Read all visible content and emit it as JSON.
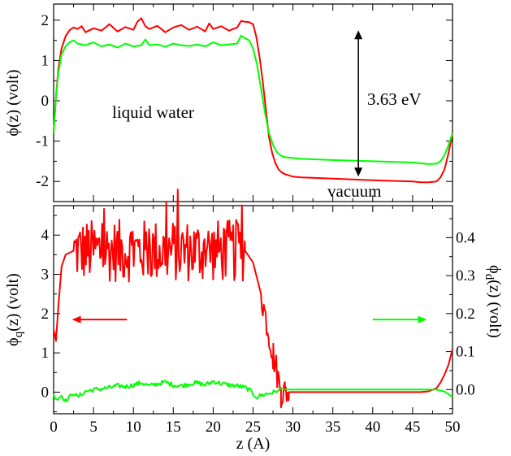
{
  "colors": {
    "red": "#ff0000",
    "green": "#00ff00",
    "axis": "#000000"
  },
  "chart_data": [
    {
      "type": "line",
      "panel": "top",
      "ylabel": "ϕ(z) (volt)",
      "xlim": [
        0,
        50
      ],
      "ylim": [
        -2.5,
        2.4
      ],
      "yticks": [
        "-2",
        "-1",
        "0",
        "1",
        "2"
      ],
      "ytick_values": [
        -2,
        -1,
        0,
        1,
        2
      ],
      "annotations": {
        "liquid": "liquid water",
        "vacuum": "vacuum",
        "gap": "3.63 eV"
      },
      "gap_arrow": {
        "x": 38.2,
        "y_top": 1.75,
        "y_bottom": -1.88
      },
      "series": [
        {
          "color": "#ff0000",
          "x": [
            0,
            0.3,
            0.6,
            1.0,
            1.5,
            2,
            2.5,
            3,
            3.5,
            4,
            5,
            6,
            7,
            8,
            9,
            10,
            10.5,
            11,
            11.5,
            12,
            13,
            14,
            15,
            16,
            17,
            18,
            19,
            19.5,
            20,
            21,
            22,
            23,
            23.5,
            24,
            24.5,
            25,
            25.4,
            25.8,
            26.2,
            26.6,
            27,
            27.4,
            27.8,
            28.2,
            28.6,
            29,
            29.5,
            30,
            31,
            35,
            40,
            45,
            46,
            47,
            48,
            48.5,
            49,
            49.5,
            50
          ],
          "y": [
            -0.8,
            0.1,
            0.8,
            1.3,
            1.6,
            1.75,
            1.82,
            1.78,
            1.85,
            1.7,
            1.8,
            1.74,
            1.9,
            1.72,
            1.83,
            1.76,
            1.96,
            2.05,
            1.85,
            1.78,
            1.86,
            1.7,
            1.82,
            1.88,
            1.76,
            1.84,
            1.72,
            1.92,
            1.78,
            1.85,
            1.74,
            1.82,
            1.98,
            1.96,
            1.95,
            1.9,
            1.6,
            1.1,
            0.5,
            -0.2,
            -0.9,
            -1.3,
            -1.55,
            -1.7,
            -1.78,
            -1.82,
            -1.85,
            -1.88,
            -1.9,
            -1.93,
            -1.97,
            -2.0,
            -2.02,
            -2.02,
            -2.0,
            -1.9,
            -1.7,
            -1.3,
            -0.8
          ]
        },
        {
          "color": "#00ff00",
          "x": [
            0,
            0.3,
            0.6,
            1.0,
            1.5,
            2,
            2.5,
            3,
            4,
            5,
            6,
            7,
            8,
            9,
            10,
            11,
            11.5,
            12,
            13,
            14,
            15,
            16,
            17,
            18,
            19,
            20,
            21,
            22,
            23,
            23.5,
            24,
            24.5,
            25,
            25.5,
            26,
            26.5,
            27,
            27.5,
            28,
            28.5,
            29,
            30,
            31,
            35,
            40,
            45,
            46,
            47,
            48,
            48.5,
            49,
            49.5,
            50
          ],
          "y": [
            -0.8,
            0.1,
            0.7,
            1.15,
            1.35,
            1.45,
            1.5,
            1.42,
            1.38,
            1.45,
            1.35,
            1.4,
            1.32,
            1.42,
            1.35,
            1.38,
            1.52,
            1.38,
            1.4,
            1.34,
            1.42,
            1.38,
            1.36,
            1.4,
            1.35,
            1.45,
            1.38,
            1.4,
            1.42,
            1.62,
            1.55,
            1.5,
            1.3,
            0.9,
            0.3,
            -0.3,
            -0.8,
            -1.1,
            -1.28,
            -1.36,
            -1.4,
            -1.42,
            -1.44,
            -1.47,
            -1.5,
            -1.53,
            -1.55,
            -1.57,
            -1.56,
            -1.5,
            -1.35,
            -1.1,
            -0.8
          ]
        }
      ]
    },
    {
      "type": "line",
      "panel": "bottom",
      "xlabel": "z (A)",
      "ylabel_left": "ϕq(z) (volt)",
      "ylabel_right": "ϕd(z) (volt)",
      "xlim": [
        0,
        50
      ],
      "ylim_left": [
        -0.55,
        4.75
      ],
      "ylim_right": [
        -0.0635,
        0.4842
      ],
      "xticks": [
        "0",
        "5",
        "10",
        "15",
        "20",
        "25",
        "30",
        "35",
        "40",
        "45",
        "50"
      ],
      "xtick_values": [
        0,
        5,
        10,
        15,
        20,
        25,
        30,
        35,
        40,
        45,
        50
      ],
      "yticks_left": [
        "0",
        "1",
        "2",
        "3",
        "4"
      ],
      "ytick_left_values": [
        0,
        1,
        2,
        3,
        4
      ],
      "yticks_right": [
        "0.0",
        "0.1",
        "0.2",
        "0.3",
        "0.4"
      ],
      "ytick_right_values": [
        0,
        0.1,
        0.2,
        0.3,
        0.4
      ],
      "series": [
        {
          "color": "#ff0000",
          "axis": "left",
          "noisy_plateau": true,
          "x": [
            0,
            0.3,
            0.6,
            1.0,
            1.5,
            2.5,
            24,
            25,
            26,
            27,
            27.5,
            28,
            28.5,
            29,
            29.5,
            30,
            35,
            40,
            45,
            46,
            47,
            48,
            48.5,
            49,
            49.5,
            50
          ],
          "y": [
            1.6,
            1.3,
            2.2,
            3.2,
            3.5,
            3.6,
            3.6,
            3.3,
            2.5,
            1.2,
            0.6,
            0.3,
            0.1,
            0.05,
            0.0,
            0.0,
            0.0,
            0.0,
            0.0,
            0.0,
            0.02,
            0.1,
            0.25,
            0.45,
            0.7,
            1.1
          ]
        },
        {
          "color": "#00ff00",
          "axis": "right",
          "x": [
            0,
            0.5,
            1,
            1.5,
            2,
            2.5,
            3,
            3.5,
            4,
            5,
            6,
            7,
            8,
            9,
            10,
            11,
            12,
            13,
            14,
            15,
            16,
            17,
            18,
            19,
            20,
            21,
            22,
            23,
            24,
            24.5,
            25,
            25.5,
            26,
            27,
            28,
            28.5,
            29,
            30,
            35,
            40,
            45,
            46,
            47,
            48,
            49,
            49.5,
            50
          ],
          "y": [
            -0.015,
            -0.025,
            -0.015,
            -0.03,
            -0.02,
            -0.008,
            -0.02,
            -0.012,
            -0.005,
            0.0,
            0.002,
            0.005,
            0.01,
            0.008,
            0.012,
            0.018,
            0.01,
            0.015,
            0.02,
            0.012,
            0.01,
            0.015,
            0.018,
            0.012,
            0.022,
            0.016,
            0.012,
            0.01,
            0.005,
            0.0,
            -0.012,
            -0.02,
            -0.015,
            -0.01,
            -0.005,
            0.002,
            0.0,
            0.0,
            0.0,
            0.0,
            0.0,
            0.0,
            0.0,
            0.0,
            -0.005,
            -0.012,
            -0.02
          ]
        }
      ],
      "arrows": [
        {
          "color": "#ff0000",
          "direction": "left",
          "x_from": 9.2,
          "x_to": 2.3,
          "y": 1.85
        },
        {
          "color": "#00ff00",
          "direction": "right",
          "x_from": 40.0,
          "x_to": 46.8,
          "y": 1.85
        }
      ]
    }
  ]
}
